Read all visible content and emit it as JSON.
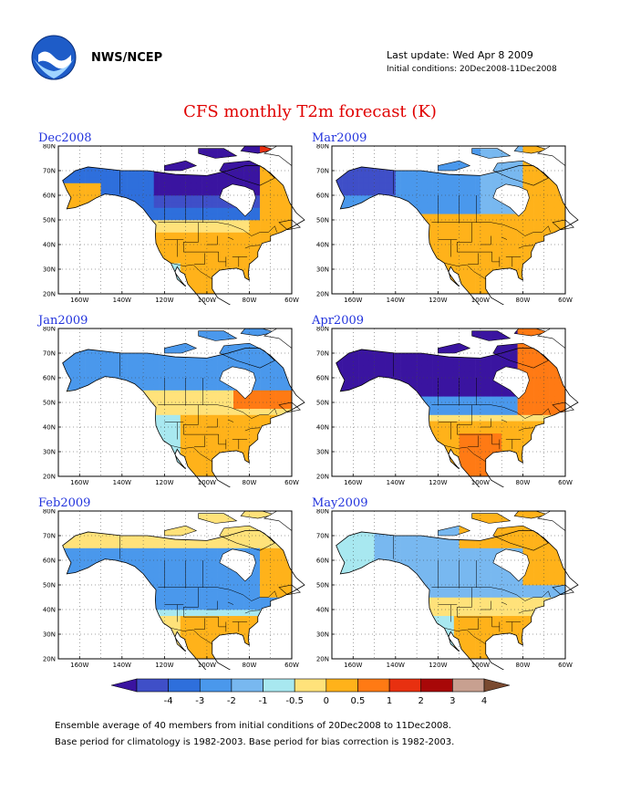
{
  "header": {
    "agency": "NWS/NCEP",
    "last_update": "Last update: Wed Apr 8 2009",
    "initial_conditions": "Initial conditions: 20Dec2008-11Dec2008"
  },
  "title": "CFS monthly T2m forecast (K)",
  "panels": [
    {
      "label": "Dec2008",
      "variant": 0
    },
    {
      "label": "Mar2009",
      "variant": 3
    },
    {
      "label": "Jan2009",
      "variant": 1
    },
    {
      "label": "Apr2009",
      "variant": 4
    },
    {
      "label": "Feb2009",
      "variant": 2
    },
    {
      "label": "May2009",
      "variant": 5
    }
  ],
  "axes": {
    "lat_labels": [
      "80N",
      "70N",
      "60N",
      "50N",
      "40N",
      "30N",
      "20N"
    ],
    "lon_labels": [
      "160W",
      "140W",
      "120W",
      "100W",
      "80W",
      "60W"
    ]
  },
  "colorbar": {
    "labels": [
      "-4",
      "-3",
      "-2",
      "-1",
      "-0.5",
      "0",
      "0.5",
      "1",
      "2",
      "3",
      "4"
    ],
    "colors": [
      "#3a14a0",
      "#3f4fc8",
      "#2e6fdc",
      "#4a98ec",
      "#78b8f0",
      "#a8e8f0",
      "#ffe27a",
      "#ffb21a",
      "#ff7a14",
      "#e83010",
      "#a80808",
      "#c8a090",
      "#7a4a30"
    ]
  },
  "footer": {
    "line1": "Ensemble average of 40 members from initial conditions of 20Dec2008 to 11Dec2008.",
    "line2": "Base period for climatology is 1982-2003. Base period for bias correction is 1982-2003."
  }
}
